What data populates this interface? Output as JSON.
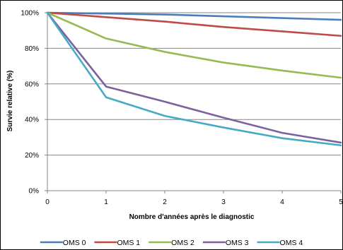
{
  "chart_data": {
    "type": "line",
    "xlabel": "Nombre d'années après le diagnostic",
    "ylabel": "Survie relative (%)",
    "x": [
      0,
      1,
      2,
      3,
      4,
      5
    ],
    "xlim": [
      0,
      5
    ],
    "ylim": [
      0,
      100
    ],
    "yticks": [
      0,
      20,
      40,
      60,
      80,
      100
    ],
    "ytick_labels": [
      "0%",
      "20%",
      "40%",
      "60%",
      "80%",
      "100%"
    ],
    "xtick_labels": [
      "0",
      "1",
      "2",
      "3",
      "4",
      "5"
    ],
    "grid": true,
    "legend_position": "bottom",
    "series": [
      {
        "name": "OMS 0",
        "color": "#4a7ebb",
        "values": [
          100,
          99.5,
          99,
          98,
          97,
          96
        ]
      },
      {
        "name": "OMS 1",
        "color": "#be4b48",
        "values": [
          100,
          97.5,
          95,
          92,
          89.5,
          87
        ]
      },
      {
        "name": "OMS 2",
        "color": "#98b954",
        "values": [
          100,
          85.5,
          78,
          72,
          67.5,
          63.5
        ]
      },
      {
        "name": "OMS 3",
        "color": "#7d60a0",
        "values": [
          100,
          58.5,
          50,
          41,
          32.5,
          27
        ]
      },
      {
        "name": "OMS 4",
        "color": "#46aac5",
        "values": [
          100,
          52.5,
          42,
          35.5,
          29.5,
          25.5
        ]
      }
    ]
  }
}
